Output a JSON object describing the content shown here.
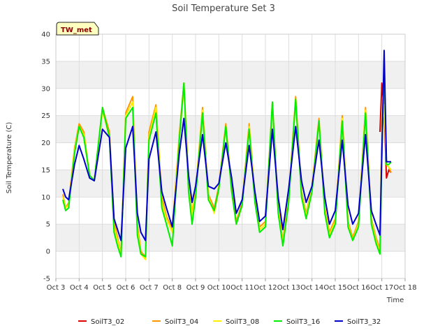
{
  "chart_data": {
    "type": "line",
    "title": "Soil Temperature Set 3",
    "xlabel": "Time",
    "ylabel": "Soil Temperature (C)",
    "annotation": "TW_met",
    "x_tick_labels": [
      "Oct 3",
      "Oct 4",
      "Oct 5",
      "Oct 6",
      "Oct 7",
      "Oct 8",
      "Oct 9",
      "Oct 10",
      "Oct 11",
      "Oct 12",
      "Oct 13",
      "Oct 14",
      "Oct 15",
      "Oct 16",
      "Oct 17",
      "Oct 18"
    ],
    "y_ticks": [
      -5,
      0,
      5,
      10,
      15,
      20,
      25,
      30,
      35,
      40
    ],
    "ylim": [
      -5,
      40
    ],
    "xlim_days": [
      0,
      15
    ],
    "grid": true,
    "background_bands": "alternating light gray horizontal bands",
    "legend_position": "bottom",
    "series": [
      {
        "name": "SoilT3_02",
        "color": "#dd0000",
        "x": [
          13.92,
          14.0,
          14.1,
          14.2,
          14.3,
          14.4
        ],
        "values": [
          22.0,
          31.0,
          26.0,
          13.5,
          15.0,
          14.5
        ]
      },
      {
        "name": "SoilT3_04",
        "color": "#ff9900",
        "x": [
          0.3,
          0.42,
          0.55,
          0.8,
          1.0,
          1.2,
          1.45,
          1.65,
          2.0,
          2.3,
          2.5,
          2.65,
          2.8,
          3.0,
          3.3,
          3.5,
          3.65,
          3.85,
          4.0,
          4.3,
          4.55,
          4.75,
          5.0,
          5.3,
          5.5,
          5.7,
          5.85,
          6.0,
          6.3,
          6.55,
          6.8,
          7.0,
          7.3,
          7.55,
          7.75,
          8.0,
          8.3,
          8.55,
          8.75,
          9.0,
          9.3,
          9.55,
          9.75,
          10.0,
          10.3,
          10.55,
          10.75,
          11.0,
          11.3,
          11.55,
          11.75,
          12.0,
          12.3,
          12.55,
          12.75,
          13.0,
          13.3,
          13.55,
          13.75,
          13.92,
          14.0,
          14.1,
          14.2,
          14.3,
          14.4
        ],
        "values": [
          10.5,
          8.0,
          9.0,
          19.0,
          23.5,
          22.0,
          14.0,
          13.0,
          26.5,
          22.0,
          5.5,
          2.5,
          -0.5,
          25.5,
          28.5,
          5.0,
          0.0,
          -1.0,
          22.0,
          27.0,
          10.0,
          6.5,
          4.0,
          21.5,
          31.0,
          13.0,
          7.0,
          11.0,
          26.5,
          10.5,
          8.0,
          12.0,
          23.5,
          11.5,
          5.5,
          9.0,
          23.5,
          10.0,
          4.5,
          5.5,
          27.5,
          8.0,
          2.0,
          10.0,
          28.5,
          11.0,
          7.0,
          12.0,
          24.5,
          8.0,
          3.5,
          6.0,
          25.0,
          5.5,
          2.5,
          5.5,
          26.5,
          6.0,
          2.5,
          0.5,
          23.0,
          30.0,
          16.0,
          15.5,
          14.5
        ]
      },
      {
        "name": "SoilT3_08",
        "color": "#ffee00",
        "x": [
          0.3,
          0.42,
          0.55,
          0.8,
          1.0,
          1.2,
          1.45,
          1.65,
          2.0,
          2.3,
          2.5,
          2.65,
          2.8,
          3.0,
          3.3,
          3.5,
          3.65,
          3.85,
          4.0,
          4.3,
          4.55,
          4.75,
          5.0,
          5.3,
          5.5,
          5.7,
          5.85,
          6.0,
          6.3,
          6.55,
          6.8,
          7.0,
          7.3,
          7.55,
          7.75,
          8.0,
          8.3,
          8.55,
          8.75,
          9.0,
          9.3,
          9.55,
          9.75,
          10.0,
          10.3,
          10.55,
          10.75,
          11.0,
          11.3,
          11.55,
          11.75,
          12.0,
          12.3,
          12.55,
          12.75,
          13.0,
          13.3,
          13.55,
          13.75,
          13.92,
          14.0,
          14.1,
          14.2,
          14.3,
          14.4
        ],
        "values": [
          10.0,
          8.0,
          8.5,
          18.5,
          23.0,
          21.5,
          14.0,
          13.0,
          26.0,
          21.0,
          4.5,
          2.0,
          -0.5,
          25.0,
          27.5,
          4.0,
          -0.5,
          -1.5,
          21.0,
          26.5,
          9.0,
          6.0,
          3.5,
          21.0,
          30.0,
          12.0,
          6.5,
          10.5,
          26.0,
          10.0,
          7.0,
          11.5,
          23.0,
          11.0,
          5.0,
          8.5,
          23.0,
          9.5,
          4.0,
          5.0,
          27.0,
          7.5,
          1.5,
          9.5,
          28.0,
          10.5,
          6.5,
          11.5,
          24.0,
          7.5,
          3.0,
          5.5,
          24.5,
          5.0,
          2.0,
          5.0,
          26.0,
          5.5,
          2.0,
          0.0,
          22.0,
          27.0,
          16.0,
          15.5,
          15.0
        ]
      },
      {
        "name": "SoilT3_16",
        "color": "#00ee00",
        "x": [
          0.3,
          0.42,
          0.55,
          0.8,
          1.0,
          1.2,
          1.45,
          1.65,
          2.0,
          2.3,
          2.5,
          2.65,
          2.8,
          3.0,
          3.3,
          3.5,
          3.65,
          3.85,
          4.0,
          4.3,
          4.55,
          4.75,
          5.0,
          5.3,
          5.5,
          5.7,
          5.85,
          6.0,
          6.3,
          6.55,
          6.8,
          7.0,
          7.3,
          7.55,
          7.75,
          8.0,
          8.3,
          8.55,
          8.75,
          9.0,
          9.3,
          9.55,
          9.75,
          10.0,
          10.3,
          10.55,
          10.75,
          11.0,
          11.3,
          11.55,
          11.75,
          12.0,
          12.3,
          12.55,
          12.75,
          13.0,
          13.3,
          13.55,
          13.75,
          13.92,
          14.0,
          14.1,
          14.2,
          14.3,
          14.4
        ],
        "values": [
          9.5,
          7.5,
          8.0,
          18.0,
          23.0,
          21.0,
          14.0,
          13.0,
          26.5,
          21.0,
          3.5,
          1.0,
          -1.0,
          24.5,
          26.5,
          3.0,
          -0.5,
          -1.0,
          20.5,
          25.5,
          8.0,
          5.0,
          1.0,
          20.5,
          31.0,
          11.0,
          5.0,
          10.0,
          25.5,
          9.5,
          7.5,
          11.5,
          23.0,
          11.0,
          5.0,
          8.5,
          22.5,
          9.0,
          3.5,
          4.5,
          27.5,
          7.0,
          1.0,
          9.0,
          28.0,
          10.0,
          6.0,
          11.0,
          24.0,
          7.0,
          2.5,
          5.0,
          24.0,
          4.5,
          2.0,
          4.5,
          25.5,
          5.0,
          1.5,
          -0.5,
          18.0,
          35.0,
          16.0,
          16.0,
          16.5
        ]
      },
      {
        "name": "SoilT3_32",
        "color": "#0000cc",
        "x": [
          0.3,
          0.42,
          0.55,
          0.8,
          1.0,
          1.2,
          1.45,
          1.65,
          2.0,
          2.3,
          2.5,
          2.65,
          2.8,
          3.0,
          3.3,
          3.5,
          3.65,
          3.85,
          4.0,
          4.3,
          4.55,
          4.75,
          5.0,
          5.3,
          5.5,
          5.7,
          5.85,
          6.0,
          6.3,
          6.55,
          6.8,
          7.0,
          7.3,
          7.55,
          7.75,
          8.0,
          8.3,
          8.55,
          8.75,
          9.0,
          9.3,
          9.55,
          9.75,
          10.0,
          10.3,
          10.55,
          10.75,
          11.0,
          11.3,
          11.55,
          11.75,
          12.0,
          12.3,
          12.55,
          12.75,
          13.0,
          13.3,
          13.55,
          13.75,
          13.92,
          14.0,
          14.1,
          14.2,
          14.3,
          14.4
        ],
        "values": [
          11.5,
          10.0,
          9.5,
          16.0,
          19.5,
          17.0,
          13.5,
          13.0,
          22.5,
          21.0,
          6.0,
          4.0,
          2.0,
          19.0,
          23.0,
          7.0,
          3.5,
          2.0,
          17.0,
          22.0,
          11.0,
          8.0,
          4.5,
          18.0,
          24.5,
          14.0,
          9.0,
          12.0,
          21.5,
          12.0,
          11.5,
          12.5,
          20.0,
          13.5,
          7.0,
          9.5,
          19.5,
          11.0,
          5.5,
          6.5,
          22.5,
          10.0,
          4.0,
          11.5,
          23.0,
          13.0,
          9.0,
          12.0,
          20.5,
          10.0,
          5.0,
          7.5,
          20.5,
          8.5,
          5.0,
          7.0,
          21.5,
          7.5,
          5.0,
          3.0,
          18.0,
          37.0,
          16.5,
          16.5,
          16.5
        ]
      }
    ]
  }
}
